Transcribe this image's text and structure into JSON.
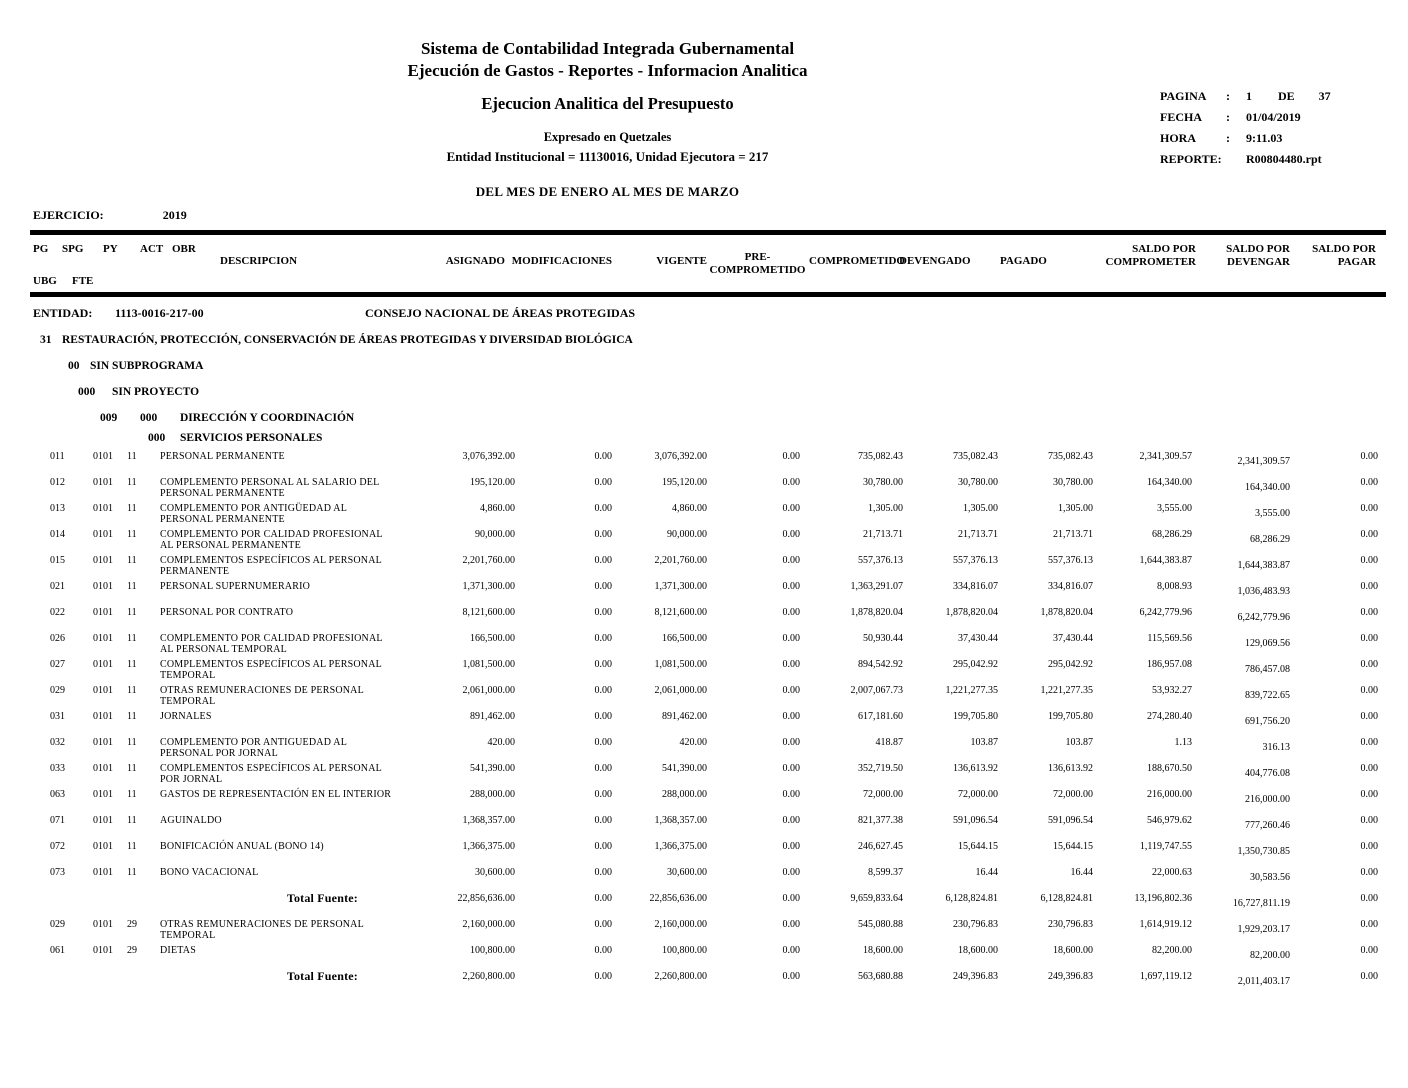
{
  "header": {
    "title_line1": "Sistema de Contabilidad Integrada Gubernamental",
    "title_line2": "Ejecución de Gastos - Reportes - Informacion Analitica",
    "subtitle": "Ejecucion Analitica del Presupuesto",
    "currency_note": "Expresado en Quetzales",
    "entity_note": "Entidad Institucional = 11130016, Unidad Ejecutora = 217",
    "period": "DEL MES DE ENERO AL MES DE MARZO"
  },
  "meta": {
    "pagina_label": "PAGINA",
    "pagina_colon": ":",
    "pagina_value": "1",
    "pagina_de": "DE",
    "pagina_total": "37",
    "fecha_label": "FECHA",
    "fecha_colon": ":",
    "fecha_value": "01/04/2019",
    "hora_label": "HORA",
    "hora_colon": ":",
    "hora_value": "9:11.03",
    "reporte_label": "REPORTE:",
    "reporte_value": "R00804480.rpt"
  },
  "ejercicio": {
    "label": "EJERCICIO:",
    "value": "2019"
  },
  "columns": {
    "pg": "PG",
    "spg": "SPG",
    "py": "PY",
    "act": "ACT",
    "obr": "OBR",
    "ubg": "UBG",
    "fte": "FTE",
    "descripcion": "DESCRIPCION",
    "asignado": "ASIGNADO",
    "modificaciones": "MODIFICACIONES",
    "vigente": "VIGENTE",
    "pre_line1": "PRE-",
    "pre_line2": "COMPROMETIDO",
    "comprometido": "COMPROMETIDO",
    "devengado": "DEVENGADO",
    "pagado": "PAGADO",
    "saldo_comprometer_l1": "SALDO POR",
    "saldo_comprometer_l2": "COMPROMETER",
    "saldo_devengar_l1": "SALDO POR",
    "saldo_devengar_l2": "DEVENGAR",
    "saldo_pagar_l1": "SALDO POR",
    "saldo_pagar_l2": "PAGAR"
  },
  "entity": {
    "label": "ENTIDAD:",
    "code": "1113-0016-217-00",
    "name": "CONSEJO NACIONAL DE ÁREAS PROTEGIDAS"
  },
  "sections": {
    "program_code": "31",
    "program_name": "RESTAURACIÓN, PROTECCIÓN, CONSERVACIÓN DE ÁREAS PROTEGIDAS Y DIVERSIDAD BIOLÓGICA",
    "subprogram_code": "00",
    "subprogram_name": "SIN SUBPROGRAMA",
    "project_code": "000",
    "project_name": "SIN PROYECTO",
    "activity_code1": "009",
    "activity_code2": "000",
    "activity_name": "DIRECCIÓN Y COORDINACIÓN",
    "group_code": "000",
    "group_name": "SERVICIOS PERSONALES"
  },
  "rows": [
    {
      "type": "item",
      "pg": "011",
      "ubg": "0101",
      "fte": "11",
      "desc": "PERSONAL PERMANENTE",
      "vals": [
        "3,076,392.00",
        "0.00",
        "3,076,392.00",
        "0.00",
        "735,082.43",
        "735,082.43",
        "735,082.43",
        "2,341,309.57",
        "2,341,309.57",
        "0.00"
      ]
    },
    {
      "type": "item",
      "pg": "012",
      "ubg": "0101",
      "fte": "11",
      "desc": "COMPLEMENTO PERSONAL AL SALARIO DEL PERSONAL PERMANENTE",
      "vals": [
        "195,120.00",
        "0.00",
        "195,120.00",
        "0.00",
        "30,780.00",
        "30,780.00",
        "30,780.00",
        "164,340.00",
        "164,340.00",
        "0.00"
      ]
    },
    {
      "type": "item",
      "pg": "013",
      "ubg": "0101",
      "fte": "11",
      "desc": "COMPLEMENTO POR ANTIGÜEDAD AL PERSONAL PERMANENTE",
      "vals": [
        "4,860.00",
        "0.00",
        "4,860.00",
        "0.00",
        "1,305.00",
        "1,305.00",
        "1,305.00",
        "3,555.00",
        "3,555.00",
        "0.00"
      ]
    },
    {
      "type": "item",
      "pg": "014",
      "ubg": "0101",
      "fte": "11",
      "desc": "COMPLEMENTO POR CALIDAD PROFESIONAL AL PERSONAL PERMANENTE",
      "vals": [
        "90,000.00",
        "0.00",
        "90,000.00",
        "0.00",
        "21,713.71",
        "21,713.71",
        "21,713.71",
        "68,286.29",
        "68,286.29",
        "0.00"
      ]
    },
    {
      "type": "item",
      "pg": "015",
      "ubg": "0101",
      "fte": "11",
      "desc": "COMPLEMENTOS ESPECÍFICOS AL PERSONAL PERMANENTE",
      "vals": [
        "2,201,760.00",
        "0.00",
        "2,201,760.00",
        "0.00",
        "557,376.13",
        "557,376.13",
        "557,376.13",
        "1,644,383.87",
        "1,644,383.87",
        "0.00"
      ]
    },
    {
      "type": "item",
      "pg": "021",
      "ubg": "0101",
      "fte": "11",
      "desc": "PERSONAL SUPERNUMERARIO",
      "vals": [
        "1,371,300.00",
        "0.00",
        "1,371,300.00",
        "0.00",
        "1,363,291.07",
        "334,816.07",
        "334,816.07",
        "8,008.93",
        "1,036,483.93",
        "0.00"
      ]
    },
    {
      "type": "item",
      "pg": "022",
      "ubg": "0101",
      "fte": "11",
      "desc": "PERSONAL POR CONTRATO",
      "vals": [
        "8,121,600.00",
        "0.00",
        "8,121,600.00",
        "0.00",
        "1,878,820.04",
        "1,878,820.04",
        "1,878,820.04",
        "6,242,779.96",
        "6,242,779.96",
        "0.00"
      ]
    },
    {
      "type": "item",
      "pg": "026",
      "ubg": "0101",
      "fte": "11",
      "desc": "COMPLEMENTO POR CALIDAD PROFESIONAL AL PERSONAL TEMPORAL",
      "vals": [
        "166,500.00",
        "0.00",
        "166,500.00",
        "0.00",
        "50,930.44",
        "37,430.44",
        "37,430.44",
        "115,569.56",
        "129,069.56",
        "0.00"
      ]
    },
    {
      "type": "item",
      "pg": "027",
      "ubg": "0101",
      "fte": "11",
      "desc": "COMPLEMENTOS ESPECÍFICOS AL PERSONAL TEMPORAL",
      "vals": [
        "1,081,500.00",
        "0.00",
        "1,081,500.00",
        "0.00",
        "894,542.92",
        "295,042.92",
        "295,042.92",
        "186,957.08",
        "786,457.08",
        "0.00"
      ]
    },
    {
      "type": "item",
      "pg": "029",
      "ubg": "0101",
      "fte": "11",
      "desc": "OTRAS REMUNERACIONES DE PERSONAL TEMPORAL",
      "vals": [
        "2,061,000.00",
        "0.00",
        "2,061,000.00",
        "0.00",
        "2,007,067.73",
        "1,221,277.35",
        "1,221,277.35",
        "53,932.27",
        "839,722.65",
        "0.00"
      ]
    },
    {
      "type": "item",
      "pg": "031",
      "ubg": "0101",
      "fte": "11",
      "desc": "JORNALES",
      "vals": [
        "891,462.00",
        "0.00",
        "891,462.00",
        "0.00",
        "617,181.60",
        "199,705.80",
        "199,705.80",
        "274,280.40",
        "691,756.20",
        "0.00"
      ]
    },
    {
      "type": "item",
      "pg": "032",
      "ubg": "0101",
      "fte": "11",
      "desc": "COMPLEMENTO POR ANTIGUEDAD AL PERSONAL POR JORNAL",
      "vals": [
        "420.00",
        "0.00",
        "420.00",
        "0.00",
        "418.87",
        "103.87",
        "103.87",
        "1.13",
        "316.13",
        "0.00"
      ]
    },
    {
      "type": "item",
      "pg": "033",
      "ubg": "0101",
      "fte": "11",
      "desc": "COMPLEMENTOS ESPECÍFICOS AL PERSONAL POR JORNAL",
      "vals": [
        "541,390.00",
        "0.00",
        "541,390.00",
        "0.00",
        "352,719.50",
        "136,613.92",
        "136,613.92",
        "188,670.50",
        "404,776.08",
        "0.00"
      ]
    },
    {
      "type": "item",
      "pg": "063",
      "ubg": "0101",
      "fte": "11",
      "desc": "GASTOS DE REPRESENTACIÓN EN EL INTERIOR",
      "vals": [
        "288,000.00",
        "0.00",
        "288,000.00",
        "0.00",
        "72,000.00",
        "72,000.00",
        "72,000.00",
        "216,000.00",
        "216,000.00",
        "0.00"
      ]
    },
    {
      "type": "item",
      "pg": "071",
      "ubg": "0101",
      "fte": "11",
      "desc": "AGUINALDO",
      "vals": [
        "1,368,357.00",
        "0.00",
        "1,368,357.00",
        "0.00",
        "821,377.38",
        "591,096.54",
        "591,096.54",
        "546,979.62",
        "777,260.46",
        "0.00"
      ]
    },
    {
      "type": "item",
      "pg": "072",
      "ubg": "0101",
      "fte": "11",
      "desc": "BONIFICACIÓN ANUAL (BONO 14)",
      "vals": [
        "1,366,375.00",
        "0.00",
        "1,366,375.00",
        "0.00",
        "246,627.45",
        "15,644.15",
        "15,644.15",
        "1,119,747.55",
        "1,350,730.85",
        "0.00"
      ]
    },
    {
      "type": "item",
      "pg": "073",
      "ubg": "0101",
      "fte": "11",
      "desc": "BONO VACACIONAL",
      "vals": [
        "30,600.00",
        "0.00",
        "30,600.00",
        "0.00",
        "8,599.37",
        "16.44",
        "16.44",
        "22,000.63",
        "30,583.56",
        "0.00"
      ]
    },
    {
      "type": "total",
      "label": "Total Fuente:",
      "vals": [
        "22,856,636.00",
        "0.00",
        "22,856,636.00",
        "0.00",
        "9,659,833.64",
        "6,128,824.81",
        "6,128,824.81",
        "13,196,802.36",
        "16,727,811.19",
        "0.00"
      ]
    },
    {
      "type": "item",
      "pg": "029",
      "ubg": "0101",
      "fte": "29",
      "desc": "OTRAS REMUNERACIONES DE PERSONAL TEMPORAL",
      "vals": [
        "2,160,000.00",
        "0.00",
        "2,160,000.00",
        "0.00",
        "545,080.88",
        "230,796.83",
        "230,796.83",
        "1,614,919.12",
        "1,929,203.17",
        "0.00"
      ]
    },
    {
      "type": "item",
      "pg": "061",
      "ubg": "0101",
      "fte": "29",
      "desc": "DIETAS",
      "vals": [
        "100,800.00",
        "0.00",
        "100,800.00",
        "0.00",
        "18,600.00",
        "18,600.00",
        "18,600.00",
        "82,200.00",
        "82,200.00",
        "0.00"
      ]
    },
    {
      "type": "total",
      "label": "Total Fuente:",
      "vals": [
        "2,260,800.00",
        "0.00",
        "2,260,800.00",
        "0.00",
        "563,680.88",
        "249,396.83",
        "249,396.83",
        "1,697,119.12",
        "2,011,403.17",
        "0.00"
      ]
    }
  ]
}
